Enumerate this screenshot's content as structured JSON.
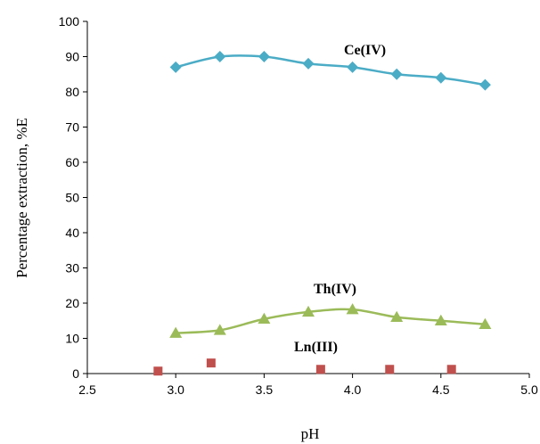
{
  "chart_data": {
    "type": "line",
    "title": "",
    "xlabel": "pH",
    "ylabel": "Percentage extraction, %E",
    "xlim": [
      2.5,
      5.0
    ],
    "ylim": [
      0,
      100
    ],
    "xticks": [
      "2.5",
      "3.0",
      "3.5",
      "4.0",
      "4.5",
      "5.0"
    ],
    "yticks": [
      "0",
      "10",
      "20",
      "30",
      "40",
      "50",
      "60",
      "70",
      "80",
      "90",
      "100"
    ],
    "grid": false,
    "series": [
      {
        "name": "Ce(IV)",
        "color": "#4bacc6",
        "marker": "diamond",
        "line": true,
        "x": [
          3.0,
          3.25,
          3.5,
          3.75,
          4.0,
          4.25,
          4.5,
          4.75
        ],
        "y": [
          87,
          90,
          90,
          88,
          87,
          85,
          84,
          82
        ]
      },
      {
        "name": "Th(IV)",
        "color": "#9bbb59",
        "marker": "triangle",
        "line": true,
        "x": [
          3.0,
          3.25,
          3.5,
          3.75,
          4.0,
          4.25,
          4.5,
          4.75
        ],
        "y": [
          11.5,
          12.3,
          15.5,
          17.5,
          18.2,
          16,
          15,
          14
        ]
      },
      {
        "name": "Ln(III)",
        "color": "#c0504d",
        "marker": "square",
        "line": false,
        "x": [
          2.9,
          3.2,
          3.82,
          4.21,
          4.56
        ],
        "y": [
          0.7,
          3,
          1.2,
          1.2,
          1.2
        ]
      }
    ]
  }
}
